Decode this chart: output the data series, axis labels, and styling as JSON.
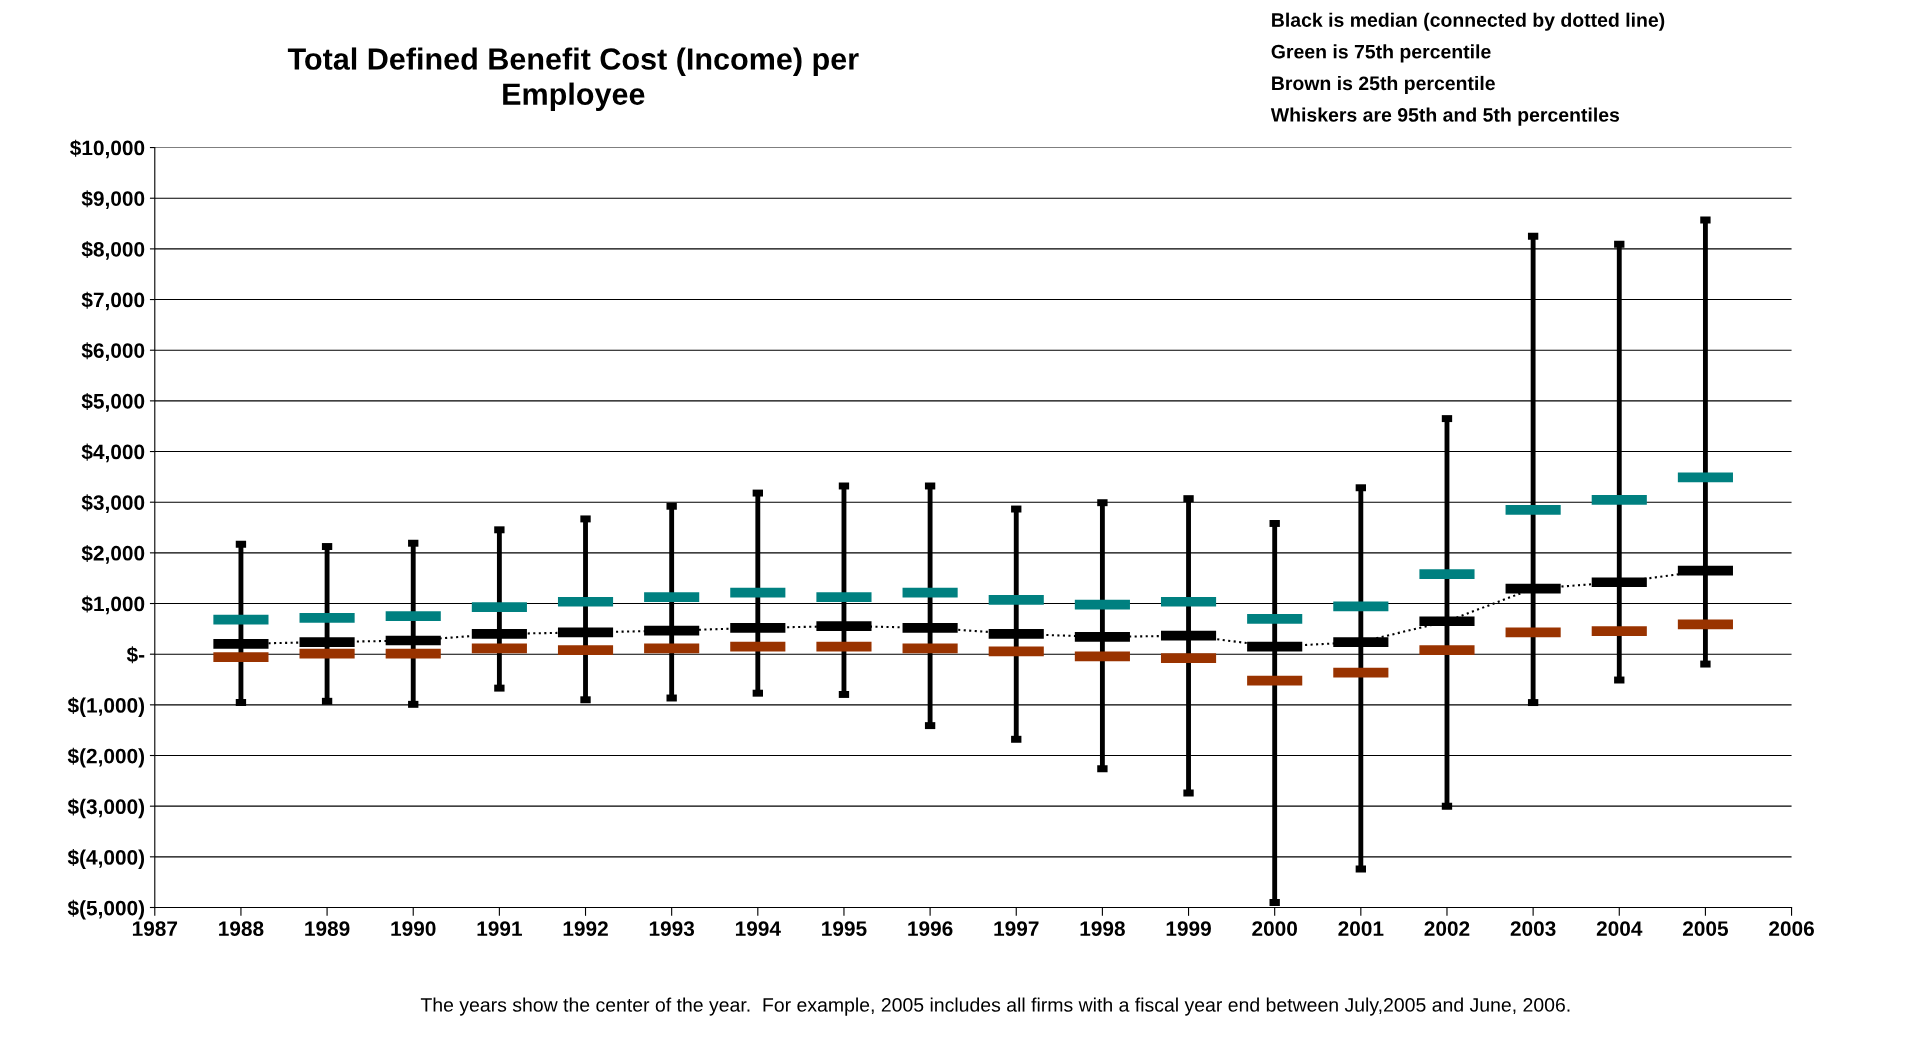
{
  "chart_data": {
    "type": "box",
    "title": "Total Defined Benefit Cost (Income) per\nEmployee",
    "x": [
      1988,
      1989,
      1990,
      1991,
      1992,
      1993,
      1994,
      1995,
      1996,
      1997,
      1998,
      1999,
      2000,
      2001,
      2002,
      2003,
      2004,
      2005
    ],
    "boxes": [
      {
        "low": -955,
        "q1": -57,
        "median": 205,
        "q3": 680,
        "high": 2170
      },
      {
        "low": -930,
        "q1": 10,
        "median": 240,
        "q3": 716,
        "high": 2125
      },
      {
        "low": -990,
        "q1": 10,
        "median": 270,
        "q3": 750,
        "high": 2190
      },
      {
        "low": -670,
        "q1": 115,
        "median": 400,
        "q3": 930,
        "high": 2455
      },
      {
        "low": -900,
        "q1": 80,
        "median": 430,
        "q3": 1035,
        "high": 2670
      },
      {
        "low": -865,
        "q1": 115,
        "median": 465,
        "q3": 1125,
        "high": 2920
      },
      {
        "low": -770,
        "q1": 150,
        "median": 520,
        "q3": 1215,
        "high": 3180
      },
      {
        "low": -795,
        "q1": 150,
        "median": 555,
        "q3": 1125,
        "high": 3320
      },
      {
        "low": -1410,
        "q1": 115,
        "median": 520,
        "q3": 1215,
        "high": 3320
      },
      {
        "low": -1680,
        "q1": 55,
        "median": 400,
        "q3": 1070,
        "high": 2865
      },
      {
        "low": -2260,
        "q1": -45,
        "median": 340,
        "q3": 980,
        "high": 2990
      },
      {
        "low": -2740,
        "q1": -80,
        "median": 365,
        "q3": 1035,
        "high": 3070
      },
      {
        "low": -4900,
        "q1": -520,
        "median": 150,
        "q3": 695,
        "high": 2580
      },
      {
        "low": -4240,
        "q1": -365,
        "median": 240,
        "q3": 945,
        "high": 3285
      },
      {
        "low": -3000,
        "q1": 80,
        "median": 650,
        "q3": 1580,
        "high": 4650
      },
      {
        "low": -955,
        "q1": 430,
        "median": 1295,
        "q3": 2850,
        "high": 8250
      },
      {
        "low": -510,
        "q1": 455,
        "median": 1420,
        "q3": 3045,
        "high": 8090
      },
      {
        "low": -195,
        "q1": 590,
        "median": 1650,
        "q3": 3490,
        "high": 8570
      }
    ],
    "series": [
      {
        "type": "line",
        "color": "#000000",
        "line_style": "dotted",
        "values": [
          205,
          240,
          270,
          400,
          430,
          465,
          520,
          555,
          520,
          400,
          340,
          365,
          150,
          240,
          650,
          1295,
          1420,
          1650
        ]
      }
    ],
    "xlim": [
      1987,
      2006
    ],
    "xticks": [
      1987,
      1988,
      1989,
      1990,
      1991,
      1992,
      1993,
      1994,
      1995,
      1996,
      1997,
      1998,
      1999,
      2000,
      2001,
      2002,
      2003,
      2004,
      2005,
      2006
    ],
    "ylim": [
      -5000,
      10000
    ],
    "yticks": [
      {
        "value": 10000,
        "label": "$10,000"
      },
      {
        "value": 9000,
        "label": "$9,000"
      },
      {
        "value": 8000,
        "label": "$8,000"
      },
      {
        "value": 7000,
        "label": "$7,000"
      },
      {
        "value": 6000,
        "label": "$6,000"
      },
      {
        "value": 5000,
        "label": "$5,000"
      },
      {
        "value": 4000,
        "label": "$4,000"
      },
      {
        "value": 3000,
        "label": "$3,000"
      },
      {
        "value": 2000,
        "label": "$2,000"
      },
      {
        "value": 1000,
        "label": "$1,000"
      },
      {
        "value": 0,
        "label": "$-"
      },
      {
        "value": -1000,
        "label": "$(1,000)"
      },
      {
        "value": -2000,
        "label": "$(2,000)"
      },
      {
        "value": -3000,
        "label": "$(3,000)"
      },
      {
        "value": -4000,
        "label": "$(4,000)"
      },
      {
        "value": -5000,
        "label": "$(5,000)"
      }
    ],
    "grid": "y",
    "annotations": [
      "Black is median (connected by dotted line)",
      "Green is 75th percentile",
      "Brown is 25th percentile",
      "Whiskers are 95th and 5th percentiles",
      "The years show the center of the year.  For example, 2005 includes all firms with a fiscal year end between July,2005 and June, 2006."
    ]
  }
}
